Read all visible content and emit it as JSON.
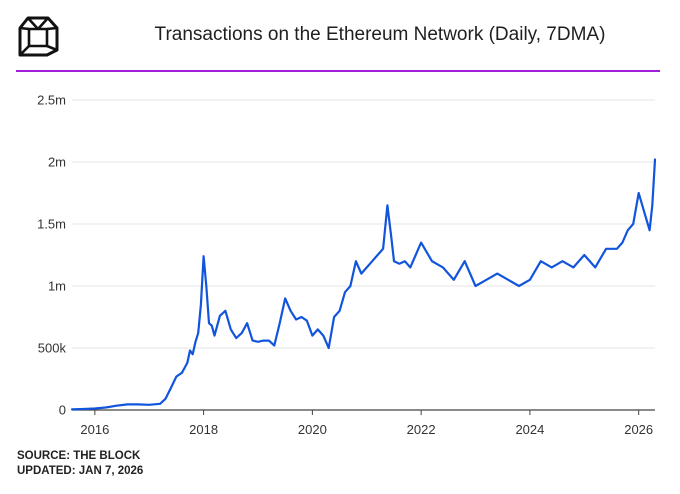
{
  "header": {
    "title": "Transactions on the Ethereum Network (Daily, 7DMA)",
    "logo_icon": "the-block-cube-logo-icon"
  },
  "footer": {
    "source": "SOURCE: THE BLOCK",
    "updated": "UPDATED: JAN 7, 2026"
  },
  "colors": {
    "line": "#1155dd",
    "divider": "#a020d8",
    "grid": "#e6e6e6"
  },
  "chart_data": {
    "type": "line",
    "title": "Transactions on the Ethereum Network (Daily, 7DMA)",
    "xlabel": "",
    "ylabel": "",
    "grid": true,
    "legend": "none",
    "xlim": [
      2015.58,
      2026.3
    ],
    "ylim": [
      0,
      2500000
    ],
    "x_ticks": [
      2016,
      2018,
      2020,
      2022,
      2024,
      2026
    ],
    "x_tick_labels": [
      "2016",
      "2018",
      "2020",
      "2022",
      "2024",
      "2026"
    ],
    "y_ticks": [
      0,
      500000,
      1000000,
      1500000,
      2000000,
      2500000
    ],
    "y_tick_labels": [
      "0",
      "500k",
      "1m",
      "1.5m",
      "2m",
      "2.5m"
    ],
    "series": [
      {
        "x": [
          2015.58,
          2015.8,
          2016.0,
          2016.2,
          2016.4,
          2016.6,
          2016.8,
          2017.0,
          2017.2,
          2017.3,
          2017.4,
          2017.5,
          2017.6,
          2017.7,
          2017.75,
          2017.8,
          2017.85,
          2017.9,
          2017.95,
          2018.0,
          2018.05,
          2018.1,
          2018.15,
          2018.2,
          2018.3,
          2018.4,
          2018.5,
          2018.6,
          2018.7,
          2018.8,
          2018.9,
          2019.0,
          2019.1,
          2019.2,
          2019.3,
          2019.4,
          2019.5,
          2019.6,
          2019.7,
          2019.8,
          2019.9,
          2020.0,
          2020.1,
          2020.2,
          2020.3,
          2020.4,
          2020.5,
          2020.6,
          2020.7,
          2020.8,
          2020.9,
          2021.0,
          2021.1,
          2021.2,
          2021.3,
          2021.38,
          2021.45,
          2021.5,
          2021.6,
          2021.7,
          2021.8,
          2021.9,
          2022.0,
          2022.2,
          2022.4,
          2022.6,
          2022.8,
          2023.0,
          2023.2,
          2023.4,
          2023.6,
          2023.8,
          2024.0,
          2024.2,
          2024.4,
          2024.6,
          2024.8,
          2025.0,
          2025.2,
          2025.4,
          2025.6,
          2025.7,
          2025.8,
          2025.9,
          2026.0,
          2026.1,
          2026.2,
          2026.25,
          2026.3
        ],
        "y": [
          5000,
          8000,
          12000,
          20000,
          35000,
          45000,
          45000,
          42000,
          50000,
          90000,
          180000,
          270000,
          300000,
          380000,
          480000,
          450000,
          550000,
          620000,
          850000,
          1240000,
          1000000,
          700000,
          680000,
          600000,
          760000,
          800000,
          650000,
          580000,
          620000,
          700000,
          560000,
          550000,
          560000,
          560000,
          520000,
          700000,
          900000,
          800000,
          730000,
          750000,
          720000,
          600000,
          650000,
          600000,
          500000,
          750000,
          800000,
          950000,
          1000000,
          1200000,
          1100000,
          1150000,
          1200000,
          1250000,
          1300000,
          1650000,
          1400000,
          1200000,
          1180000,
          1200000,
          1150000,
          1250000,
          1350000,
          1200000,
          1150000,
          1050000,
          1200000,
          1000000,
          1050000,
          1100000,
          1050000,
          1000000,
          1050000,
          1200000,
          1150000,
          1200000,
          1150000,
          1250000,
          1150000,
          1300000,
          1300000,
          1350000,
          1450000,
          1500000,
          1750000,
          1600000,
          1450000,
          1650000,
          2020000
        ]
      }
    ]
  }
}
